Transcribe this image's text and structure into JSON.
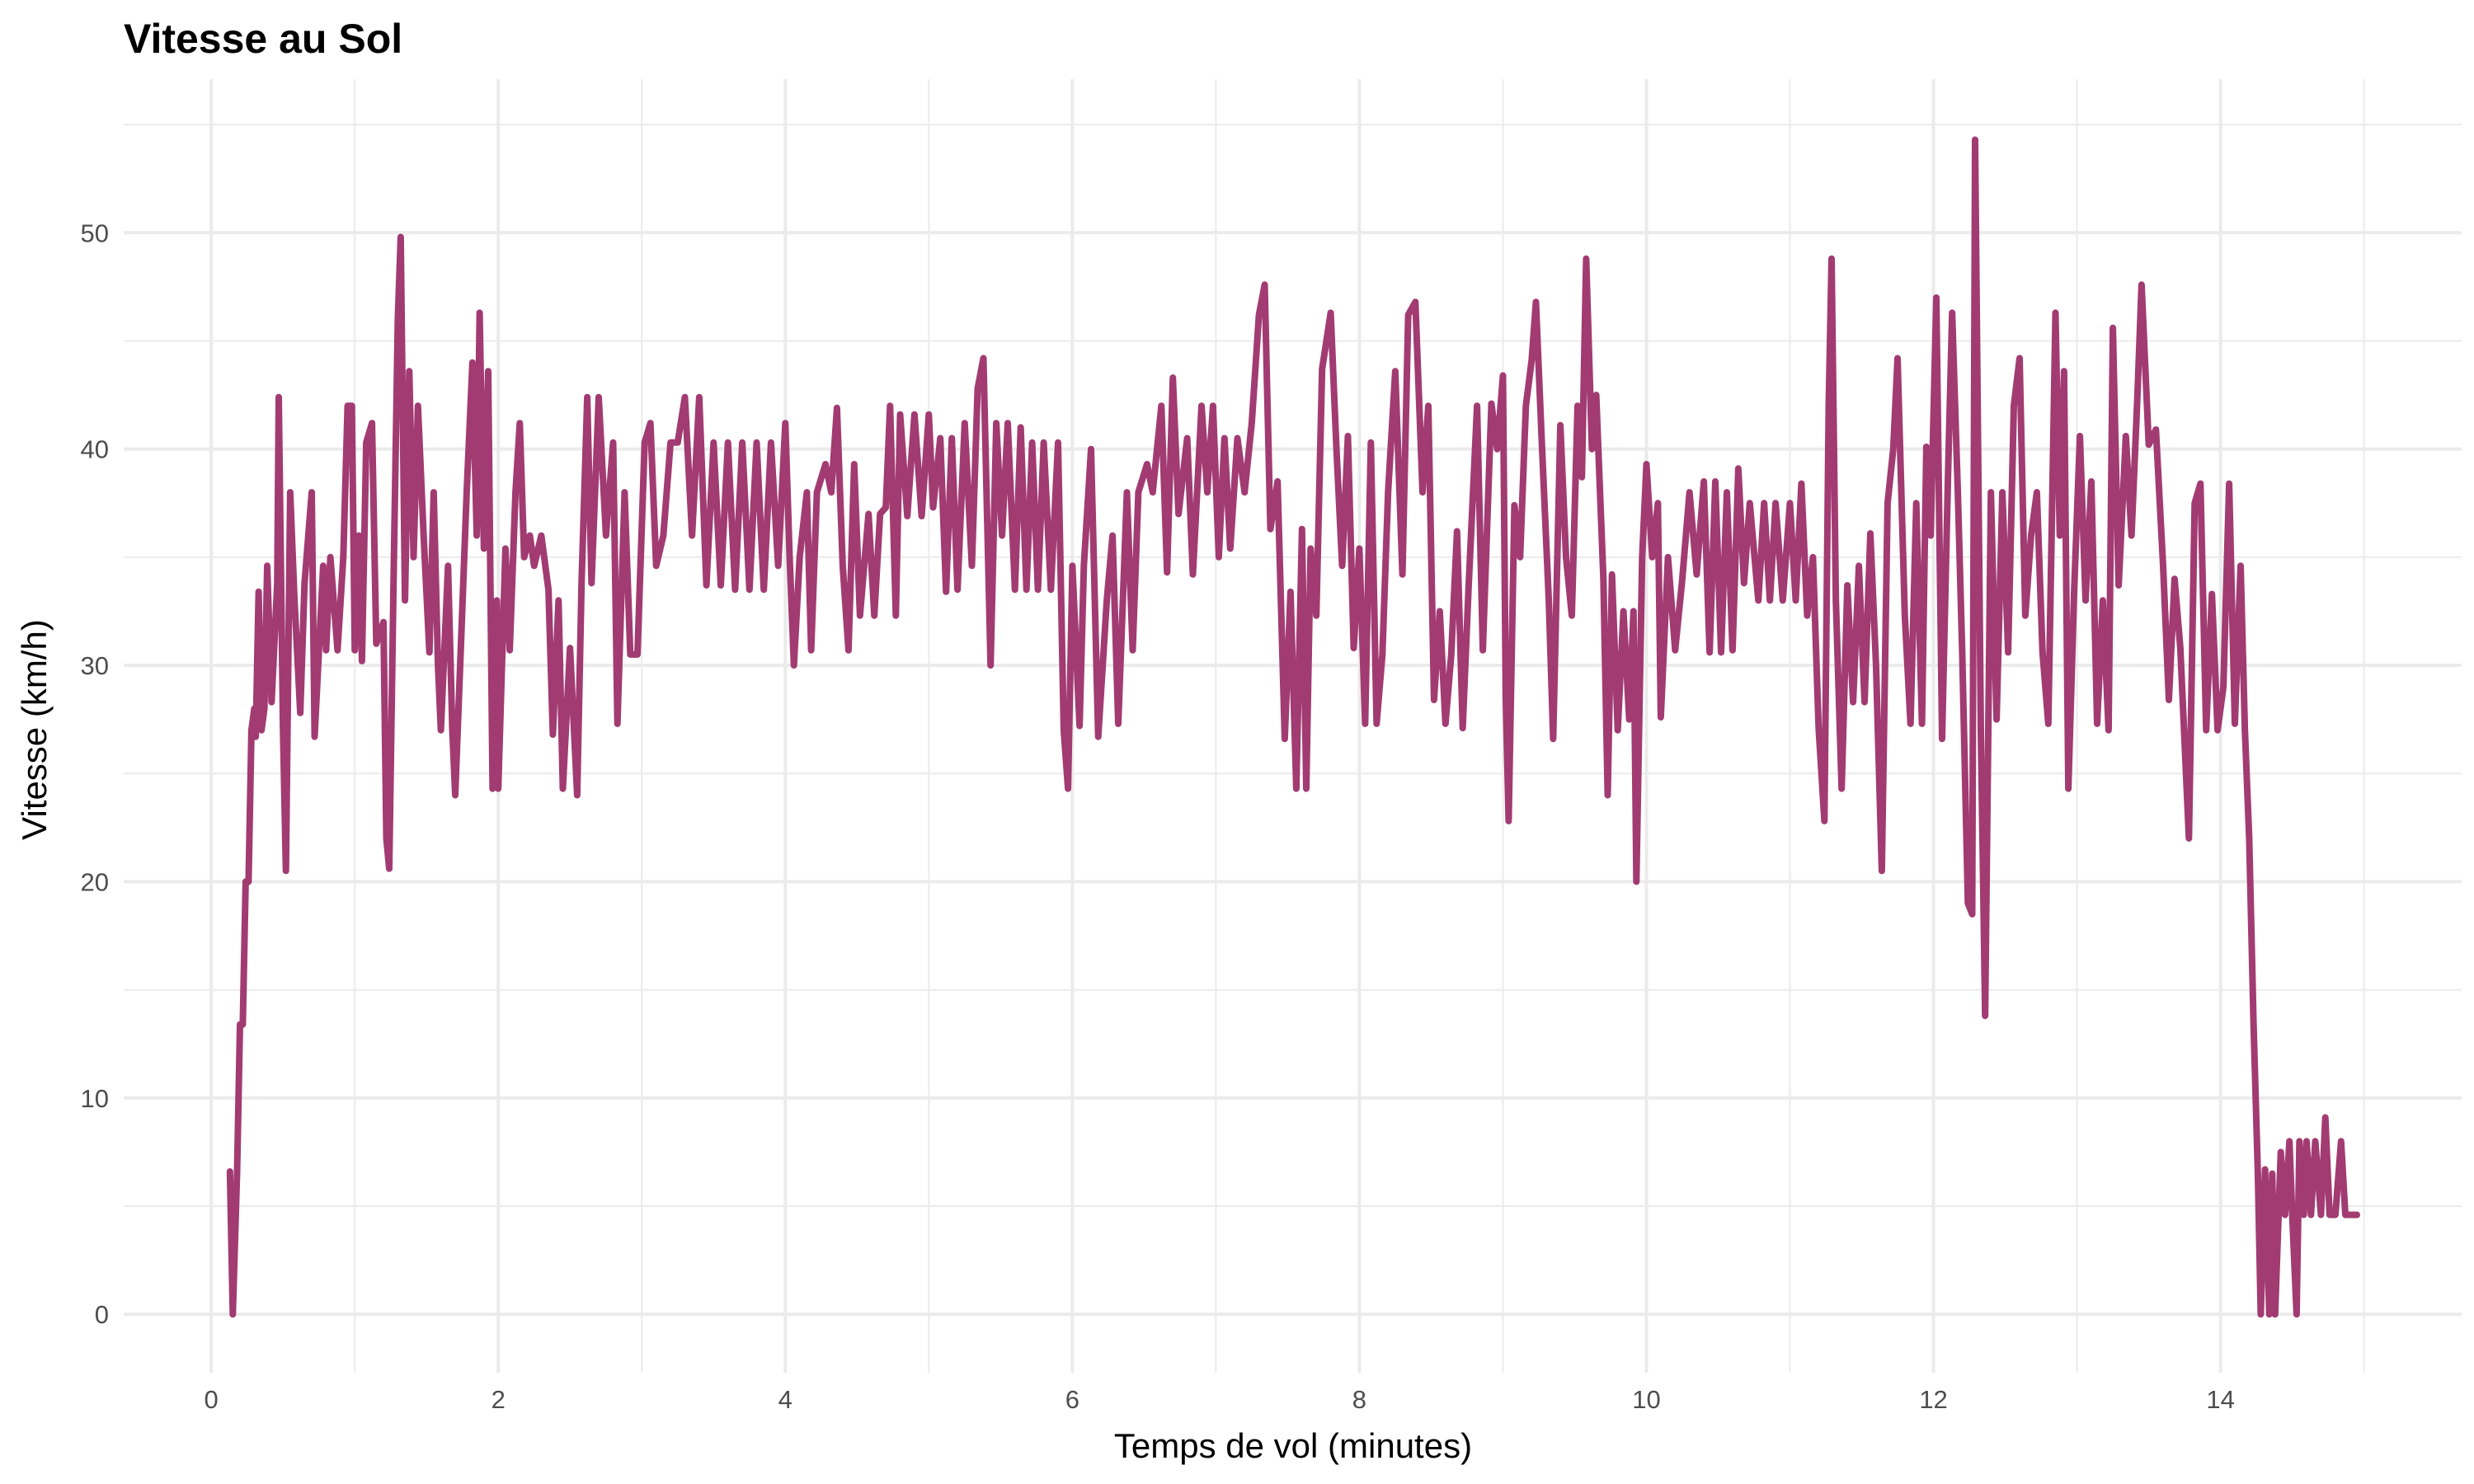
{
  "chart_data": {
    "type": "line",
    "title": "Vitesse au Sol",
    "xlabel": "Temps de vol (minutes)",
    "ylabel": "Vitesse (km/h)",
    "xlim": [
      -0.61,
      15.68
    ],
    "ylim": [
      -2.7,
      57.1
    ],
    "x_ticks": [
      0,
      2,
      4,
      6,
      8,
      10,
      12,
      14
    ],
    "y_ticks": [
      0,
      10,
      20,
      30,
      40,
      50
    ],
    "grid": true,
    "line_color": "#A23B72",
    "points": [
      [
        0.13,
        6.6
      ],
      [
        0.15,
        0
      ],
      [
        0.18,
        6.6
      ],
      [
        0.2,
        13.4
      ],
      [
        0.22,
        13.4
      ],
      [
        0.24,
        20
      ],
      [
        0.26,
        20
      ],
      [
        0.28,
        27
      ],
      [
        0.3,
        28
      ],
      [
        0.31,
        26.7
      ],
      [
        0.33,
        33.4
      ],
      [
        0.35,
        27
      ],
      [
        0.37,
        28
      ],
      [
        0.39,
        34.6
      ],
      [
        0.42,
        28.3
      ],
      [
        0.46,
        33.8
      ],
      [
        0.47,
        42.4
      ],
      [
        0.5,
        27
      ],
      [
        0.52,
        20.5
      ],
      [
        0.55,
        38
      ],
      [
        0.58,
        33
      ],
      [
        0.62,
        27.8
      ],
      [
        0.65,
        33.8
      ],
      [
        0.7,
        38
      ],
      [
        0.72,
        26.7
      ],
      [
        0.78,
        34.6
      ],
      [
        0.8,
        30.7
      ],
      [
        0.83,
        35
      ],
      [
        0.88,
        30.7
      ],
      [
        0.92,
        35
      ],
      [
        0.95,
        42
      ],
      [
        0.98,
        42
      ],
      [
        1.0,
        30.7
      ],
      [
        1.03,
        36
      ],
      [
        1.05,
        30.2
      ],
      [
        1.08,
        40.3
      ],
      [
        1.12,
        41.2
      ],
      [
        1.15,
        31
      ],
      [
        1.2,
        32
      ],
      [
        1.22,
        22
      ],
      [
        1.24,
        20.6
      ],
      [
        1.27,
        33.8
      ],
      [
        1.3,
        46
      ],
      [
        1.32,
        49.8
      ],
      [
        1.35,
        33
      ],
      [
        1.38,
        43.6
      ],
      [
        1.41,
        35
      ],
      [
        1.44,
        42
      ],
      [
        1.48,
        36
      ],
      [
        1.52,
        30.6
      ],
      [
        1.55,
        38
      ],
      [
        1.58,
        30
      ],
      [
        1.6,
        27
      ],
      [
        1.65,
        34.6
      ],
      [
        1.68,
        27
      ],
      [
        1.7,
        24
      ],
      [
        1.74,
        31
      ],
      [
        1.78,
        38
      ],
      [
        1.82,
        44
      ],
      [
        1.85,
        36
      ],
      [
        1.87,
        46.3
      ],
      [
        1.9,
        35.4
      ],
      [
        1.93,
        43.6
      ],
      [
        1.96,
        24.3
      ],
      [
        1.99,
        33
      ],
      [
        2.0,
        24.3
      ],
      [
        2.05,
        35.4
      ],
      [
        2.08,
        30.7
      ],
      [
        2.12,
        38
      ],
      [
        2.15,
        41.2
      ],
      [
        2.18,
        35
      ],
      [
        2.22,
        36
      ],
      [
        2.25,
        34.6
      ],
      [
        2.3,
        36
      ],
      [
        2.35,
        33.5
      ],
      [
        2.38,
        26.8
      ],
      [
        2.42,
        33
      ],
      [
        2.45,
        24.3
      ],
      [
        2.5,
        30.8
      ],
      [
        2.55,
        24
      ],
      [
        2.58,
        33.8
      ],
      [
        2.62,
        42.4
      ],
      [
        2.65,
        33.8
      ],
      [
        2.7,
        42.4
      ],
      [
        2.75,
        36
      ],
      [
        2.8,
        40.3
      ],
      [
        2.83,
        27.3
      ],
      [
        2.88,
        38
      ],
      [
        2.92,
        30.5
      ],
      [
        2.97,
        30.5
      ],
      [
        3.02,
        40.3
      ],
      [
        3.06,
        41.2
      ],
      [
        3.1,
        34.6
      ],
      [
        3.15,
        36
      ],
      [
        3.2,
        40.3
      ],
      [
        3.25,
        40.3
      ],
      [
        3.3,
        42.4
      ],
      [
        3.35,
        36
      ],
      [
        3.4,
        42.4
      ],
      [
        3.45,
        33.7
      ],
      [
        3.5,
        40.3
      ],
      [
        3.55,
        33.7
      ],
      [
        3.6,
        40.3
      ],
      [
        3.65,
        33.5
      ],
      [
        3.7,
        40.3
      ],
      [
        3.75,
        33.5
      ],
      [
        3.8,
        40.3
      ],
      [
        3.85,
        33.5
      ],
      [
        3.9,
        40.3
      ],
      [
        3.95,
        34.6
      ],
      [
        4.0,
        41.2
      ],
      [
        4.03,
        35
      ],
      [
        4.06,
        30
      ],
      [
        4.1,
        35
      ],
      [
        4.15,
        38
      ],
      [
        4.18,
        30.7
      ],
      [
        4.22,
        38
      ],
      [
        4.28,
        39.3
      ],
      [
        4.32,
        38
      ],
      [
        4.36,
        41.9
      ],
      [
        4.4,
        34.6
      ],
      [
        4.44,
        30.7
      ],
      [
        4.48,
        39.3
      ],
      [
        4.52,
        32.3
      ],
      [
        4.58,
        37
      ],
      [
        4.62,
        32.3
      ],
      [
        4.66,
        37
      ],
      [
        4.7,
        37.3
      ],
      [
        4.73,
        42
      ],
      [
        4.77,
        32.3
      ],
      [
        4.8,
        41.6
      ],
      [
        4.85,
        36.9
      ],
      [
        4.9,
        41.6
      ],
      [
        4.95,
        36.9
      ],
      [
        5.0,
        41.6
      ],
      [
        5.03,
        37.3
      ],
      [
        5.08,
        40.5
      ],
      [
        5.12,
        33.4
      ],
      [
        5.16,
        40.5
      ],
      [
        5.2,
        33.5
      ],
      [
        5.25,
        41.2
      ],
      [
        5.3,
        34.6
      ],
      [
        5.34,
        42.8
      ],
      [
        5.38,
        44.2
      ],
      [
        5.43,
        30
      ],
      [
        5.47,
        41.2
      ],
      [
        5.51,
        36
      ],
      [
        5.55,
        41.2
      ],
      [
        5.6,
        33.5
      ],
      [
        5.64,
        41
      ],
      [
        5.68,
        33.5
      ],
      [
        5.72,
        40.3
      ],
      [
        5.76,
        33.5
      ],
      [
        5.8,
        40.3
      ],
      [
        5.85,
        33.5
      ],
      [
        5.9,
        40.3
      ],
      [
        5.94,
        27
      ],
      [
        5.97,
        24.3
      ],
      [
        6.0,
        34.6
      ],
      [
        6.05,
        27.2
      ],
      [
        6.08,
        34.6
      ],
      [
        6.13,
        40
      ],
      [
        6.18,
        26.7
      ],
      [
        6.24,
        33
      ],
      [
        6.28,
        36
      ],
      [
        6.32,
        27.3
      ],
      [
        6.38,
        38
      ],
      [
        6.42,
        30.7
      ],
      [
        6.46,
        38
      ],
      [
        6.52,
        39.3
      ],
      [
        6.56,
        38
      ],
      [
        6.62,
        42
      ],
      [
        6.66,
        34.3
      ],
      [
        6.7,
        43.3
      ],
      [
        6.74,
        37
      ],
      [
        6.8,
        40.5
      ],
      [
        6.84,
        34.2
      ],
      [
        6.9,
        42
      ],
      [
        6.94,
        38
      ],
      [
        6.98,
        42
      ],
      [
        7.02,
        35
      ],
      [
        7.06,
        40.5
      ],
      [
        7.1,
        35.4
      ],
      [
        7.15,
        40.5
      ],
      [
        7.2,
        38
      ],
      [
        7.25,
        41.2
      ],
      [
        7.3,
        46.2
      ],
      [
        7.34,
        47.6
      ],
      [
        7.38,
        36.3
      ],
      [
        7.43,
        38.5
      ],
      [
        7.48,
        26.6
      ],
      [
        7.52,
        33.4
      ],
      [
        7.56,
        24.3
      ],
      [
        7.6,
        36.3
      ],
      [
        7.63,
        24.3
      ],
      [
        7.66,
        35.4
      ],
      [
        7.7,
        32.3
      ],
      [
        7.74,
        43.7
      ],
      [
        7.8,
        46.3
      ],
      [
        7.84,
        40
      ],
      [
        7.88,
        34.6
      ],
      [
        7.92,
        40.6
      ],
      [
        7.96,
        30.8
      ],
      [
        8.0,
        35.4
      ],
      [
        8.04,
        27.3
      ],
      [
        8.08,
        40.3
      ],
      [
        8.12,
        27.3
      ],
      [
        8.16,
        30.5
      ],
      [
        8.2,
        38
      ],
      [
        8.25,
        43.6
      ],
      [
        8.3,
        34.2
      ],
      [
        8.34,
        46.2
      ],
      [
        8.39,
        46.8
      ],
      [
        8.44,
        38
      ],
      [
        8.48,
        42
      ],
      [
        8.52,
        28.4
      ],
      [
        8.56,
        32.5
      ],
      [
        8.6,
        27.3
      ],
      [
        8.64,
        30.5
      ],
      [
        8.68,
        36.2
      ],
      [
        8.72,
        27.1
      ],
      [
        8.76,
        33.5
      ],
      [
        8.82,
        42
      ],
      [
        8.86,
        30.7
      ],
      [
        8.92,
        42.1
      ],
      [
        8.96,
        40
      ],
      [
        9.0,
        43.4
      ],
      [
        9.02,
        28.5
      ],
      [
        9.04,
        22.8
      ],
      [
        9.08,
        37.4
      ],
      [
        9.12,
        35
      ],
      [
        9.16,
        42
      ],
      [
        9.2,
        44.1
      ],
      [
        9.23,
        46.8
      ],
      [
        9.27,
        40.5
      ],
      [
        9.32,
        33
      ],
      [
        9.35,
        26.6
      ],
      [
        9.4,
        41.1
      ],
      [
        9.44,
        35
      ],
      [
        9.48,
        32.3
      ],
      [
        9.52,
        42
      ],
      [
        9.55,
        38.7
      ],
      [
        9.58,
        48.8
      ],
      [
        9.62,
        40
      ],
      [
        9.65,
        42.5
      ],
      [
        9.7,
        34
      ],
      [
        9.73,
        24
      ],
      [
        9.76,
        34.2
      ],
      [
        9.8,
        27
      ],
      [
        9.84,
        32.5
      ],
      [
        9.88,
        27.5
      ],
      [
        9.91,
        32.5
      ],
      [
        9.93,
        20
      ],
      [
        9.97,
        35
      ],
      [
        10.0,
        39.3
      ],
      [
        10.04,
        35
      ],
      [
        10.08,
        37.5
      ],
      [
        10.1,
        27.6
      ],
      [
        10.15,
        35
      ],
      [
        10.2,
        30.7
      ],
      [
        10.25,
        34
      ],
      [
        10.3,
        38
      ],
      [
        10.35,
        34.2
      ],
      [
        10.4,
        38.5
      ],
      [
        10.44,
        30.6
      ],
      [
        10.48,
        38.5
      ],
      [
        10.52,
        30.6
      ],
      [
        10.56,
        38
      ],
      [
        10.6,
        30.7
      ],
      [
        10.64,
        39.1
      ],
      [
        10.68,
        33.8
      ],
      [
        10.72,
        37.5
      ],
      [
        10.78,
        33
      ],
      [
        10.82,
        37.5
      ],
      [
        10.86,
        33
      ],
      [
        10.9,
        37.5
      ],
      [
        10.95,
        33
      ],
      [
        11.0,
        37.5
      ],
      [
        11.04,
        33
      ],
      [
        11.08,
        38.4
      ],
      [
        11.12,
        32.3
      ],
      [
        11.16,
        35
      ],
      [
        11.2,
        27.1
      ],
      [
        11.24,
        22.8
      ],
      [
        11.27,
        42
      ],
      [
        11.29,
        48.8
      ],
      [
        11.32,
        33
      ],
      [
        11.36,
        24.3
      ],
      [
        11.4,
        33.7
      ],
      [
        11.44,
        28.3
      ],
      [
        11.48,
        34.6
      ],
      [
        11.52,
        28.3
      ],
      [
        11.56,
        36.1
      ],
      [
        11.6,
        30
      ],
      [
        11.64,
        20.5
      ],
      [
        11.68,
        37.5
      ],
      [
        11.72,
        40
      ],
      [
        11.75,
        44.2
      ],
      [
        11.8,
        32.3
      ],
      [
        11.84,
        27.3
      ],
      [
        11.88,
        37.5
      ],
      [
        11.92,
        27.3
      ],
      [
        11.95,
        40.1
      ],
      [
        11.98,
        36
      ],
      [
        12.02,
        47
      ],
      [
        12.06,
        26.6
      ],
      [
        12.1,
        38.5
      ],
      [
        12.13,
        46.3
      ],
      [
        12.17,
        38
      ],
      [
        12.2,
        30.6
      ],
      [
        12.24,
        19
      ],
      [
        12.27,
        18.5
      ],
      [
        12.29,
        54.3
      ],
      [
        12.33,
        27
      ],
      [
        12.36,
        13.8
      ],
      [
        12.4,
        38
      ],
      [
        12.44,
        27.5
      ],
      [
        12.48,
        38
      ],
      [
        12.52,
        30.6
      ],
      [
        12.56,
        42
      ],
      [
        12.6,
        44.2
      ],
      [
        12.64,
        32.3
      ],
      [
        12.68,
        36
      ],
      [
        12.72,
        38
      ],
      [
        12.76,
        30.6
      ],
      [
        12.8,
        27.3
      ],
      [
        12.85,
        46.3
      ],
      [
        12.88,
        36
      ],
      [
        12.91,
        43.6
      ],
      [
        12.94,
        24.3
      ],
      [
        12.98,
        33.4
      ],
      [
        13.02,
        40.6
      ],
      [
        13.06,
        33
      ],
      [
        13.1,
        38.5
      ],
      [
        13.14,
        27.3
      ],
      [
        13.18,
        33
      ],
      [
        13.22,
        27
      ],
      [
        13.25,
        45.6
      ],
      [
        13.29,
        33.7
      ],
      [
        13.34,
        40.6
      ],
      [
        13.38,
        36
      ],
      [
        13.42,
        42.3
      ],
      [
        13.45,
        47.6
      ],
      [
        13.5,
        40.2
      ],
      [
        13.55,
        40.9
      ],
      [
        13.6,
        34.6
      ],
      [
        13.64,
        28.4
      ],
      [
        13.68,
        34
      ],
      [
        13.72,
        30.8
      ],
      [
        13.78,
        22
      ],
      [
        13.82,
        37.5
      ],
      [
        13.86,
        38.4
      ],
      [
        13.9,
        27
      ],
      [
        13.94,
        33.3
      ],
      [
        13.98,
        27
      ],
      [
        14.02,
        29
      ],
      [
        14.06,
        38.4
      ],
      [
        14.1,
        27.3
      ],
      [
        14.14,
        34.6
      ],
      [
        14.17,
        27
      ],
      [
        14.2,
        22
      ],
      [
        14.23,
        13.4
      ],
      [
        14.26,
        6.5
      ],
      [
        14.28,
        0
      ],
      [
        14.31,
        6.7
      ],
      [
        14.34,
        0
      ],
      [
        14.36,
        6.5
      ],
      [
        14.38,
        0
      ],
      [
        14.42,
        7.5
      ],
      [
        14.45,
        4.6
      ],
      [
        14.48,
        8
      ],
      [
        14.5,
        4.6
      ],
      [
        14.53,
        0
      ],
      [
        14.55,
        8
      ],
      [
        14.58,
        4.6
      ],
      [
        14.6,
        8
      ],
      [
        14.63,
        4.6
      ],
      [
        14.66,
        8
      ],
      [
        14.7,
        4.6
      ],
      [
        14.73,
        9.1
      ],
      [
        14.76,
        4.6
      ],
      [
        14.8,
        4.6
      ],
      [
        14.84,
        8
      ],
      [
        14.87,
        4.6
      ],
      [
        14.95,
        4.6
      ]
    ]
  }
}
